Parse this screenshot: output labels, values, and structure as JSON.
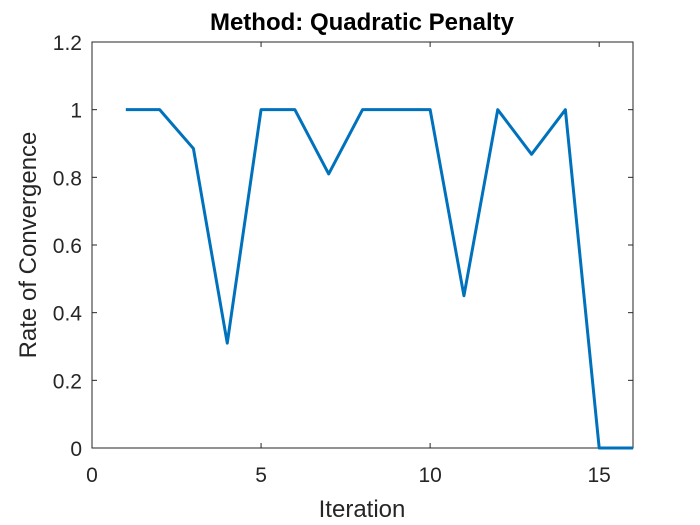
{
  "chart_data": {
    "type": "line",
    "title": "Method: Quadratic Penalty",
    "xlabel": "Iteration",
    "ylabel": "Rate of Convergence",
    "xlim": [
      0,
      16
    ],
    "ylim": [
      0,
      1.2
    ],
    "xticks": [
      0,
      5,
      10,
      15
    ],
    "yticks": [
      0,
      0.2,
      0.4,
      0.6,
      0.8,
      1,
      1.2
    ],
    "xtick_labels": [
      "0",
      "5",
      "10",
      "15"
    ],
    "ytick_labels": [
      "0",
      "0.2",
      "0.4",
      "0.6",
      "0.8",
      "1",
      "1.2"
    ],
    "grid": false,
    "series": [
      {
        "color": "#0072BD",
        "x": [
          1,
          2,
          3,
          4,
          5,
          6,
          7,
          8,
          9,
          10,
          11,
          12,
          13,
          14,
          15,
          16
        ],
        "y": [
          1,
          1,
          0.885,
          0.31,
          1,
          1,
          0.81,
          1,
          1,
          1,
          0.45,
          1,
          0.868,
          1,
          0,
          0
        ]
      }
    ]
  }
}
